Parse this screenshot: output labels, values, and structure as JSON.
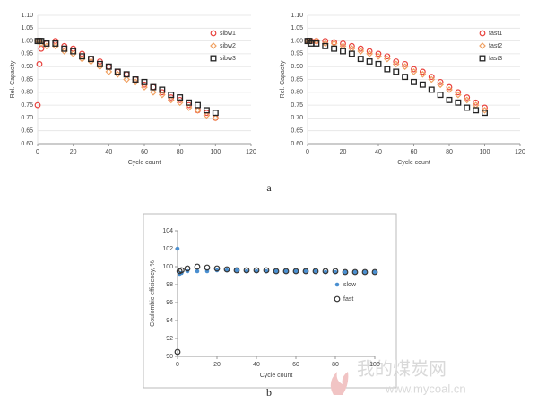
{
  "chart_data": [
    {
      "type": "scatter",
      "x_label": "Cycle count",
      "y_label": "Rel. Capacity",
      "x": [
        0,
        1,
        2,
        5,
        10,
        15,
        20,
        25,
        30,
        35,
        40,
        45,
        50,
        55,
        60,
        65,
        70,
        75,
        80,
        85,
        90,
        95,
        100
      ],
      "series": [
        {
          "name": "sibw1",
          "color": "#e8413c",
          "marker": "circle",
          "values": [
            0.75,
            0.91,
            0.97,
            0.99,
            1.0,
            0.98,
            0.97,
            0.95,
            0.93,
            0.92,
            0.9,
            0.88,
            0.87,
            0.85,
            0.83,
            0.82,
            0.8,
            0.78,
            0.77,
            0.75,
            0.73,
            0.72,
            0.7
          ]
        },
        {
          "name": "sibw2",
          "color": "#f0a060",
          "marker": "diamond",
          "values": [
            1.0,
            1.0,
            0.99,
            0.98,
            0.98,
            0.96,
            0.95,
            0.93,
            0.92,
            0.9,
            0.88,
            0.87,
            0.85,
            0.84,
            0.82,
            0.8,
            0.79,
            0.77,
            0.76,
            0.74,
            0.73,
            0.71,
            0.7
          ]
        },
        {
          "name": "sibw3",
          "color": "#222222",
          "marker": "square",
          "values": [
            1.0,
            1.0,
            1.0,
            0.99,
            0.99,
            0.97,
            0.96,
            0.94,
            0.93,
            0.91,
            0.9,
            0.88,
            0.87,
            0.85,
            0.84,
            0.82,
            0.81,
            0.79,
            0.78,
            0.76,
            0.75,
            0.73,
            0.72
          ]
        }
      ],
      "xlim": [
        0,
        120
      ],
      "xticks": [
        0,
        20,
        40,
        60,
        80,
        100,
        120
      ],
      "ylim": [
        0.6,
        1.1
      ],
      "yticks": [
        {
          "value": 0.6,
          "label": "0.60"
        },
        {
          "value": 0.65,
          "label": "0.65"
        },
        {
          "value": 0.7,
          "label": "0.70"
        },
        {
          "value": 0.75,
          "label": "0.75"
        },
        {
          "value": 0.8,
          "label": "0.80"
        },
        {
          "value": 0.85,
          "label": "0.85"
        },
        {
          "value": 0.9,
          "label": "0.90"
        },
        {
          "value": 0.95,
          "label": "0.95"
        },
        {
          "value": 1.0,
          "label": "1.00"
        },
        {
          "value": 1.05,
          "label": "1.05"
        },
        {
          "value": 1.1,
          "label": "1.10"
        }
      ],
      "grid": true,
      "legend": "upper right"
    },
    {
      "type": "scatter",
      "x_label": "Cycle count",
      "y_label": "Rel. Capacity",
      "x": [
        0,
        1,
        2,
        5,
        10,
        15,
        20,
        25,
        30,
        35,
        40,
        45,
        50,
        55,
        60,
        65,
        70,
        75,
        80,
        85,
        90,
        95,
        100
      ],
      "series": [
        {
          "name": "fast1",
          "color": "#e8413c",
          "marker": "circle",
          "values": [
            1.0,
            1.0,
            1.0,
            1.0,
            1.0,
            0.995,
            0.99,
            0.98,
            0.97,
            0.96,
            0.95,
            0.94,
            0.92,
            0.91,
            0.89,
            0.88,
            0.86,
            0.84,
            0.82,
            0.8,
            0.78,
            0.76,
            0.74
          ]
        },
        {
          "name": "fast2",
          "color": "#f0a060",
          "marker": "diamond",
          "values": [
            1.0,
            1.0,
            1.0,
            1.0,
            0.99,
            0.99,
            0.98,
            0.97,
            0.96,
            0.95,
            0.94,
            0.93,
            0.91,
            0.9,
            0.88,
            0.87,
            0.85,
            0.83,
            0.81,
            0.79,
            0.77,
            0.75,
            0.73
          ]
        },
        {
          "name": "fast3",
          "color": "#222222",
          "marker": "square",
          "values": [
            1.0,
            1.0,
            0.99,
            0.99,
            0.98,
            0.97,
            0.96,
            0.95,
            0.93,
            0.92,
            0.91,
            0.89,
            0.88,
            0.86,
            0.84,
            0.83,
            0.81,
            0.79,
            0.77,
            0.76,
            0.74,
            0.73,
            0.72
          ]
        }
      ],
      "xlim": [
        0,
        120
      ],
      "xticks": [
        0,
        20,
        40,
        60,
        80,
        100,
        120
      ],
      "ylim": [
        0.6,
        1.1
      ],
      "yticks": [
        {
          "value": 0.6,
          "label": "0.60"
        },
        {
          "value": 0.65,
          "label": "0.65"
        },
        {
          "value": 0.7,
          "label": "0.70"
        },
        {
          "value": 0.75,
          "label": "0.75"
        },
        {
          "value": 0.8,
          "label": "0.80"
        },
        {
          "value": 0.85,
          "label": "0.85"
        },
        {
          "value": 0.9,
          "label": "0.90"
        },
        {
          "value": 0.95,
          "label": "0.95"
        },
        {
          "value": 1.0,
          "label": "1.00"
        },
        {
          "value": 1.05,
          "label": "1.05"
        },
        {
          "value": 1.1,
          "label": "1.10"
        }
      ],
      "grid": true,
      "legend": "upper right"
    },
    {
      "type": "scatter",
      "x_label": "Cycle count",
      "y_label": "Coulombic efficiency, %",
      "x": [
        0,
        1,
        2,
        5,
        10,
        15,
        20,
        25,
        30,
        35,
        40,
        45,
        50,
        55,
        60,
        65,
        70,
        75,
        80,
        85,
        90,
        95,
        100
      ],
      "series": [
        {
          "name": "slow",
          "color": "#4a8fd0",
          "marker": "dot",
          "values": [
            102,
            99.2,
            99.3,
            99.5,
            99.5,
            99.5,
            99.6,
            99.6,
            99.6,
            99.5,
            99.5,
            99.5,
            99.5,
            99.5,
            99.5,
            99.5,
            99.5,
            99.4,
            99.4,
            99.4,
            99.4,
            99.4,
            99.4
          ]
        },
        {
          "name": "fast",
          "color": "#333333",
          "marker": "circle",
          "values": [
            90.5,
            99.5,
            99.6,
            99.8,
            100.0,
            99.9,
            99.8,
            99.7,
            99.6,
            99.6,
            99.6,
            99.6,
            99.5,
            99.5,
            99.5,
            99.5,
            99.5,
            99.5,
            99.5,
            99.4,
            99.4,
            99.4,
            99.4
          ]
        }
      ],
      "xlim": [
        0,
        100
      ],
      "xticks": [
        0,
        20,
        40,
        60,
        80,
        100
      ],
      "ylim": [
        90,
        104
      ],
      "yticks": [
        90,
        92,
        94,
        96,
        98,
        100,
        102,
        104
      ],
      "grid": false,
      "legend": "center right"
    }
  ],
  "panel_labels": [
    "a",
    "b"
  ],
  "watermark": {
    "title": "我的煤炭网",
    "url": "www.mycoal.cn"
  }
}
